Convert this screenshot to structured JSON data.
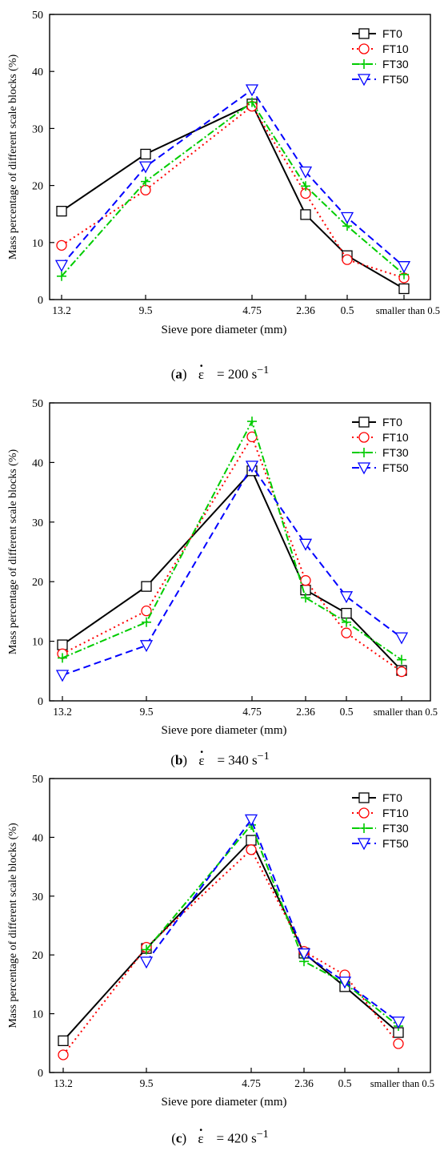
{
  "figure": {
    "panels": [
      {
        "caption": {
          "label": "a",
          "eq": "= 200 s",
          "sup": "−1",
          "symbol": "ε"
        },
        "chart_data": {
          "type": "line",
          "xlabel": "Sieve pore diameter (mm)",
          "ylabel": "Mass percentage of different scale blocks (%)",
          "categories": [
            "13.2",
            "9.5",
            "4.75",
            "2.36",
            "0.5",
            "smaller than 0.5"
          ],
          "ylim": [
            0,
            50
          ],
          "yticks": [
            0,
            10,
            20,
            30,
            40,
            50
          ],
          "legend_position": "top-right",
          "series": [
            {
              "name": "FT0",
              "values": [
                15.5,
                25.5,
                34.3,
                14.9,
                7.7,
                1.9
              ],
              "color": "#000000",
              "marker": "square",
              "dash": "solid"
            },
            {
              "name": "FT10",
              "values": [
                9.5,
                19.2,
                33.9,
                18.6,
                7.0,
                3.8
              ],
              "color": "#ff0000",
              "marker": "circle",
              "dash": "dot"
            },
            {
              "name": "FT30",
              "values": [
                4.1,
                20.7,
                34.6,
                19.9,
                12.9,
                4.4
              ],
              "color": "#00cc00",
              "marker": "plus",
              "dash": "dashdot"
            },
            {
              "name": "FT50",
              "values": [
                6.0,
                23.3,
                36.8,
                22.4,
                14.4,
                5.8
              ],
              "color": "#0000ff",
              "marker": "triangle",
              "dash": "dash"
            }
          ]
        }
      },
      {
        "caption": {
          "label": "b",
          "eq": "= 340 s",
          "sup": "−1",
          "symbol": "ε"
        },
        "chart_data": {
          "type": "line",
          "xlabel": "Sieve pore diameter (mm)",
          "ylabel": "Mass percentage of different scale blocks (%)",
          "categories": [
            "13.2",
            "9.5",
            "4.75",
            "2.36",
            "0.5",
            "smaller than 0.5"
          ],
          "ylim": [
            0,
            50
          ],
          "yticks": [
            0,
            10,
            20,
            30,
            40,
            50
          ],
          "legend_position": "top-right",
          "series": [
            {
              "name": "FT0",
              "values": [
                9.4,
                19.2,
                38.6,
                18.6,
                14.7,
                5.1
              ],
              "color": "#000000",
              "marker": "square",
              "dash": "solid"
            },
            {
              "name": "FT10",
              "values": [
                7.9,
                15.1,
                44.3,
                20.2,
                11.4,
                4.9
              ],
              "color": "#ff0000",
              "marker": "circle",
              "dash": "dot"
            },
            {
              "name": "FT30",
              "values": [
                7.2,
                13.2,
                46.9,
                17.3,
                13.2,
                6.9
              ],
              "color": "#00cc00",
              "marker": "plus",
              "dash": "dashdot"
            },
            {
              "name": "FT50",
              "values": [
                4.3,
                9.3,
                39.4,
                26.3,
                17.5,
                10.6
              ],
              "color": "#0000ff",
              "marker": "triangle",
              "dash": "dash"
            }
          ]
        }
      },
      {
        "caption": {
          "label": "c",
          "eq": "= 420 s",
          "sup": "−1",
          "symbol": "ε"
        },
        "chart_data": {
          "type": "line",
          "xlabel": "Sieve pore diameter (mm)",
          "ylabel": "Mass percentage of different scale blocks (%)",
          "categories": [
            "13.2",
            "9.5",
            "4.75",
            "2.36",
            "0.5",
            "smaller than 0.5"
          ],
          "ylim": [
            0,
            50
          ],
          "yticks": [
            0,
            10,
            20,
            30,
            40,
            50
          ],
          "legend_position": "top-right",
          "series": [
            {
              "name": "FT0",
              "values": [
                5.4,
                21.1,
                39.5,
                20.3,
                14.6,
                6.8
              ],
              "color": "#000000",
              "marker": "square",
              "dash": "solid"
            },
            {
              "name": "FT10",
              "values": [
                3.0,
                21.3,
                37.9,
                20.6,
                16.6,
                4.9
              ],
              "color": "#ff0000",
              "marker": "circle",
              "dash": "dot"
            },
            {
              "name": "FT30",
              "values": [
                null,
                20.9,
                42.1,
                18.9,
                15.2,
                7.9
              ],
              "color": "#00cc00",
              "marker": "plus",
              "dash": "dashdot"
            },
            {
              "name": "FT50",
              "values": [
                null,
                18.8,
                43.0,
                20.2,
                15.4,
                8.6
              ],
              "color": "#0000ff",
              "marker": "triangle",
              "dash": "dash"
            }
          ]
        }
      }
    ]
  }
}
